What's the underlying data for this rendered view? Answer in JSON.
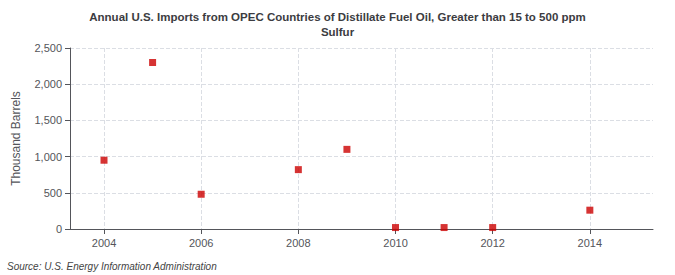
{
  "chart_data": {
    "type": "scatter",
    "title": "Annual U.S. Imports from OPEC Countries of Distillate Fuel Oil, Greater than 15 to 500 ppm\nSulfur",
    "ylabel": "Thousand Barrels",
    "annotations": [
      "Source: U.S. Energy Information Administration"
    ],
    "x": [
      2004,
      2005,
      2006,
      2008,
      2009,
      2010,
      2011,
      2012,
      2014
    ],
    "values": [
      950,
      2300,
      480,
      820,
      1100,
      20,
      20,
      20,
      260
    ],
    "color": "#cc0000",
    "marker": "square",
    "xlim": [
      2003.3,
      2015.3
    ],
    "xticks": [
      2004,
      2006,
      2008,
      2010,
      2012,
      2014
    ],
    "ylim": [
      0,
      2500
    ],
    "yticks": [
      0,
      500,
      {
        "value": 1000,
        "label": "1,000"
      },
      {
        "value": 1500,
        "label": "1,500"
      },
      {
        "value": 2000,
        "label": "2,000"
      },
      {
        "value": 2500,
        "label": "2,500"
      }
    ],
    "grid": true
  }
}
